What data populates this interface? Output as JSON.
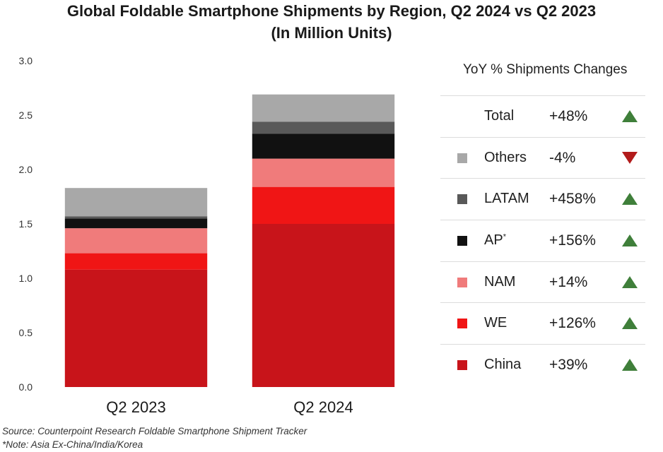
{
  "title_line1": "Global Foldable Smartphone Shipments by Region, Q2 2024 vs Q2 2023",
  "title_line2": "(In Million Units)",
  "legend_title": "YoY % Shipments Changes",
  "legend": [
    {
      "label": "Total",
      "change": "+48%",
      "direction": "up",
      "color": null
    },
    {
      "label": "Others",
      "change": "-4%",
      "direction": "down",
      "color": "#a8a8a8"
    },
    {
      "label": "LATAM",
      "change": "+458%",
      "direction": "up",
      "color": "#595959"
    },
    {
      "label": "AP",
      "sup": "*",
      "change": "+156%",
      "direction": "up",
      "color": "#111111"
    },
    {
      "label": "NAM",
      "change": "+14%",
      "direction": "up",
      "color": "#f07b7b"
    },
    {
      "label": "WE",
      "change": "+126%",
      "direction": "up",
      "color": "#f01515"
    },
    {
      "label": "China",
      "change": "+39%",
      "direction": "up",
      "color": "#c8141a"
    }
  ],
  "colors": {
    "up": "#3f7f3a",
    "down": "#b21b1b",
    "grid": "#d9d9d9"
  },
  "source_line1": "Source: Counterpoint Research Foldable Smartphone Shipment Tracker",
  "source_line2": "*Note: Asia Ex-China/India/Korea",
  "chart_data": {
    "type": "bar",
    "stacked": true,
    "categories": [
      "Q2 2023",
      "Q2 2024"
    ],
    "series": [
      {
        "name": "China",
        "color": "#c8141a",
        "values": [
          1.08,
          1.5
        ]
      },
      {
        "name": "WE",
        "color": "#f01515",
        "values": [
          0.15,
          0.34
        ]
      },
      {
        "name": "NAM",
        "color": "#f07b7b",
        "values": [
          0.23,
          0.26
        ]
      },
      {
        "name": "AP",
        "color": "#111111",
        "values": [
          0.09,
          0.23
        ]
      },
      {
        "name": "LATAM",
        "color": "#595959",
        "values": [
          0.02,
          0.11
        ]
      },
      {
        "name": "Others",
        "color": "#a8a8a8",
        "values": [
          0.26,
          0.25
        ]
      }
    ],
    "ylim": [
      0,
      3.0
    ],
    "yticks": [
      "0.0",
      "0.5",
      "1.0",
      "1.5",
      "2.0",
      "2.5",
      "3.0"
    ],
    "xlabel": "",
    "ylabel": "",
    "grid": false,
    "legend_position": "right"
  }
}
